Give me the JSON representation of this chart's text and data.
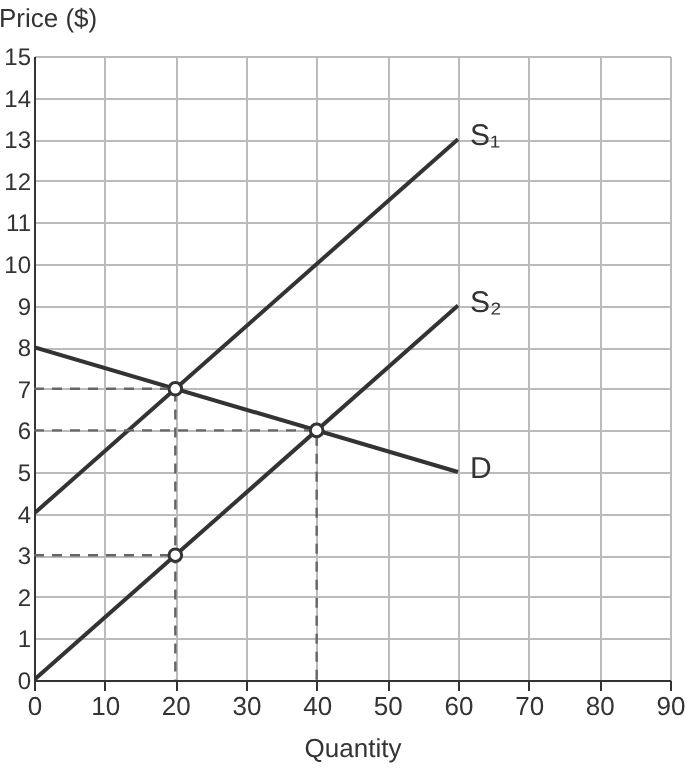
{
  "chart_data": {
    "type": "line",
    "xlabel": "Quantity",
    "ylabel": "Price ($)",
    "xlim": [
      0,
      90
    ],
    "ylim": [
      0,
      15
    ],
    "xticks": [
      0,
      10,
      20,
      30,
      40,
      50,
      60,
      70,
      80,
      90
    ],
    "yticks": [
      0,
      1,
      2,
      3,
      4,
      5,
      6,
      7,
      8,
      9,
      10,
      11,
      12,
      13,
      14,
      15
    ],
    "grid": true,
    "series": [
      {
        "name": "S₁",
        "color": "#333333",
        "x": [
          0,
          60
        ],
        "values": [
          4,
          13
        ]
      },
      {
        "name": "S₂",
        "color": "#333333",
        "x": [
          0,
          60
        ],
        "values": [
          0,
          9
        ]
      },
      {
        "name": "D",
        "color": "#333333",
        "x": [
          0,
          60
        ],
        "values": [
          8,
          5
        ]
      },
      {
        "color": "#666666",
        "line_style": "dashed",
        "x": [
          0,
          20,
          20
        ],
        "values": [
          7,
          7,
          0
        ]
      },
      {
        "color": "#666666",
        "line_style": "dashed",
        "x": [
          0,
          40,
          40
        ],
        "values": [
          6,
          6,
          0
        ]
      },
      {
        "color": "#666666",
        "line_style": "dashed",
        "x": [
          0,
          20
        ],
        "values": [
          3,
          3
        ]
      },
      {
        "type": "scatter",
        "marker": "circle",
        "color": "#333333",
        "x": [
          20,
          40,
          20
        ],
        "values": [
          7,
          6,
          3
        ]
      }
    ]
  }
}
